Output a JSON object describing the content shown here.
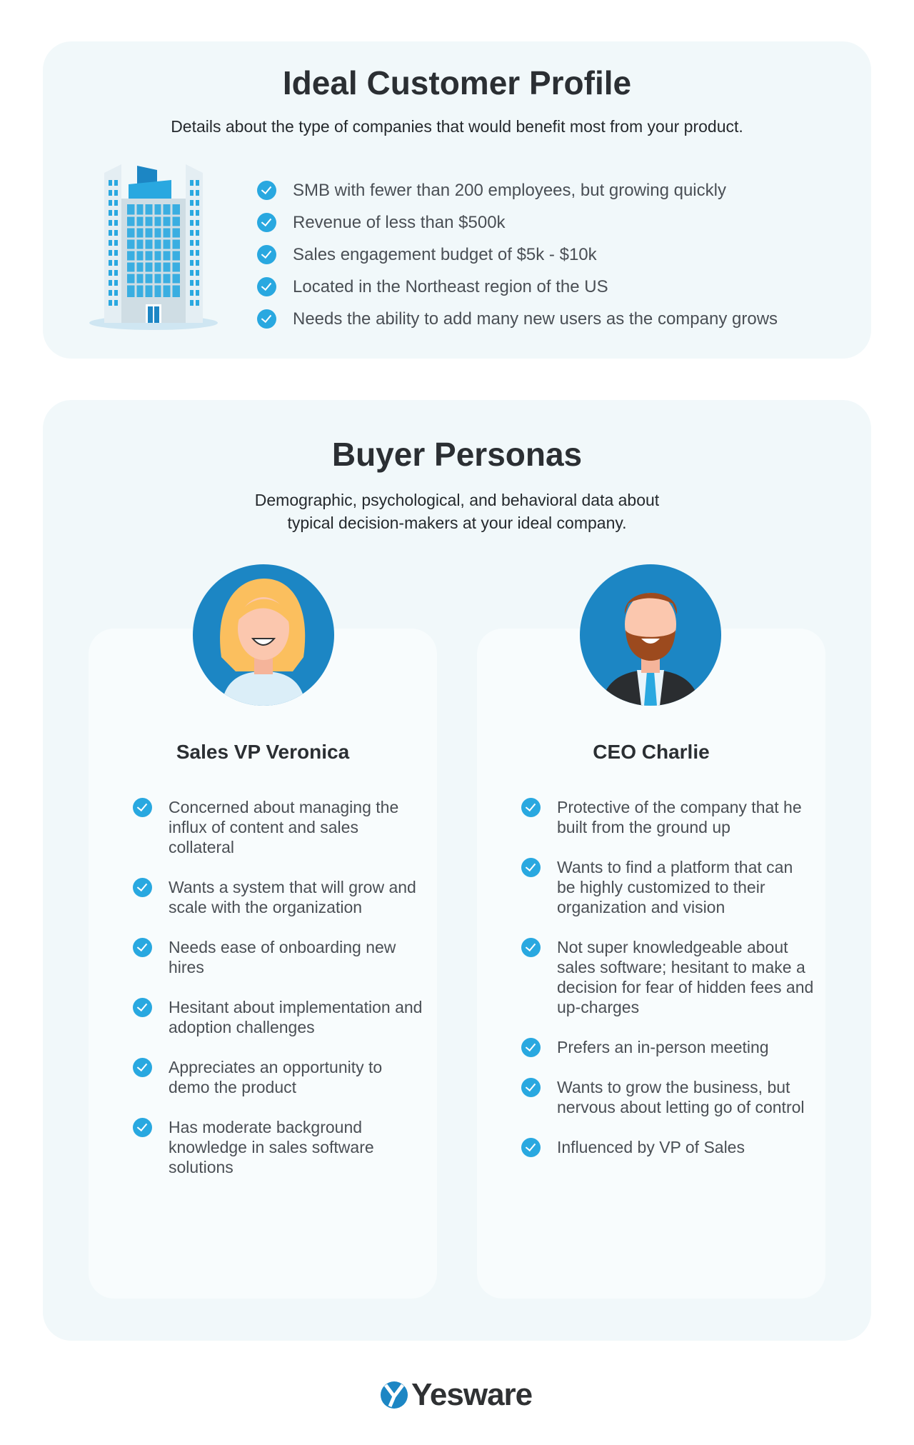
{
  "icp": {
    "title": "Ideal Customer Profile",
    "subtitle": "Details about the type of companies that would benefit most from your product.",
    "items": [
      "SMB with fewer than 200 employees, but growing quickly",
      "Revenue of less than $500k",
      "Sales engagement budget of $5k - $10k",
      "Located in the Northeast region of the US",
      "Needs the ability to add many new users as the company grows"
    ]
  },
  "personas": {
    "title": "Buyer Personas",
    "subtitle_line1": "Demographic, psychological, and behavioral data about",
    "subtitle_line2": "typical decision-makers at your ideal company.",
    "cards": [
      {
        "name": "Sales VP Veronica",
        "items": [
          "Concerned about managing the influx of content and sales collateral",
          "Wants a system that will grow and scale with the organization",
          "Needs ease of onboarding new hires",
          "Hesitant about implementation and adoption challenges",
          "Appreciates an opportunity to demo the product",
          "Has moderate background knowledge in sales software solutions"
        ]
      },
      {
        "name": "CEO Charlie",
        "items": [
          "Protective of the company that he built from the ground up",
          "Wants to find a platform that can be highly customized to their organization and vision",
          "Not super knowledgeable about sales software; hesitant to make a decision for fear of hidden fees and up-charges",
          "Prefers an in-person meeting",
          "Wants to grow the business, but nervous about letting go of control",
          "Influenced by VP of Sales"
        ]
      }
    ]
  },
  "logo": {
    "text": "Yesware"
  },
  "colors": {
    "accent": "#29a8e0",
    "dark_blue": "#1c86c4",
    "card_bg": "#f1f8fa"
  }
}
